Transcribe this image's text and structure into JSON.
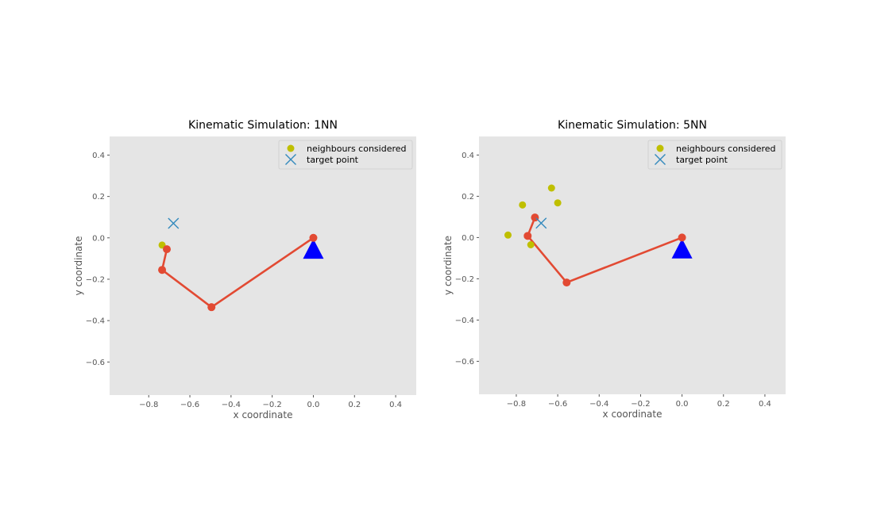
{
  "figure": {
    "background": "#ffffff"
  },
  "chart_data": [
    {
      "type": "scatter",
      "title": "Kinematic Simulation: 1NN",
      "xlabel": "x coordinate",
      "ylabel": "y coordinate",
      "xlim": [
        -0.99,
        0.5
      ],
      "ylim": [
        -0.76,
        0.49
      ],
      "xticks": [
        -0.8,
        -0.6,
        -0.4,
        -0.2,
        0.0,
        0.2,
        0.4
      ],
      "xtick_labels": [
        "−0.8",
        "−0.6",
        "−0.4",
        "−0.2",
        "0.0",
        "0.2",
        "0.4"
      ],
      "yticks": [
        0.4,
        0.2,
        0.0,
        -0.2,
        -0.4,
        -0.6
      ],
      "ytick_labels": [
        "0.4",
        "0.2",
        "0.0",
        "−0.2",
        "−0.4",
        "−0.6"
      ],
      "grid": false,
      "legend": {
        "placement": "top-right",
        "entries": [
          "neighbours considered",
          "target point"
        ]
      },
      "colors": {
        "background": "#e5e5e5",
        "arm": "#e24a33",
        "neighbours": "#bfbf00",
        "target": "#348abd",
        "base": "#0000ff"
      },
      "arm": {
        "x": [
          0.0,
          -0.495,
          -0.735,
          -0.712
        ],
        "y": [
          0.0,
          -0.335,
          -0.155,
          -0.055
        ]
      },
      "neighbours": {
        "x": [
          -0.735
        ],
        "y": [
          -0.035
        ]
      },
      "target": {
        "x": -0.68,
        "y": 0.07
      },
      "base": {
        "x": 0.0,
        "y": -0.055
      }
    },
    {
      "type": "scatter",
      "title": "Kinematic Simulation: 5NN",
      "xlabel": "x coordinate",
      "ylabel": "y coordinate",
      "xlim": [
        -0.98,
        0.5
      ],
      "ylim": [
        -0.76,
        0.49
      ],
      "xticks": [
        -0.8,
        -0.6,
        -0.4,
        -0.2,
        0.0,
        0.2,
        0.4
      ],
      "xtick_labels": [
        "−0.8",
        "−0.6",
        "−0.4",
        "−0.2",
        "0.0",
        "0.2",
        "0.4"
      ],
      "yticks": [
        0.4,
        0.2,
        0.0,
        -0.2,
        -0.4,
        -0.6
      ],
      "ytick_labels": [
        "0.4",
        "0.2",
        "0.0",
        "−0.2",
        "−0.4",
        "−0.6"
      ],
      "grid": false,
      "legend": {
        "placement": "top-right",
        "entries": [
          "neighbours considered",
          "target point"
        ]
      },
      "colors": {
        "background": "#e5e5e5",
        "arm": "#e24a33",
        "neighbours": "#bfbf00",
        "target": "#348abd",
        "base": "#0000ff"
      },
      "arm": {
        "x": [
          0.0,
          -0.557,
          -0.745,
          -0.71
        ],
        "y": [
          0.0,
          -0.218,
          0.008,
          0.097
        ]
      },
      "neighbours": {
        "x": [
          -0.84,
          -0.77,
          -0.63,
          -0.6,
          -0.73
        ],
        "y": [
          0.012,
          0.158,
          0.24,
          0.168,
          -0.035
        ]
      },
      "target": {
        "x": -0.68,
        "y": 0.07
      },
      "base": {
        "x": 0.0,
        "y": -0.055
      }
    }
  ]
}
